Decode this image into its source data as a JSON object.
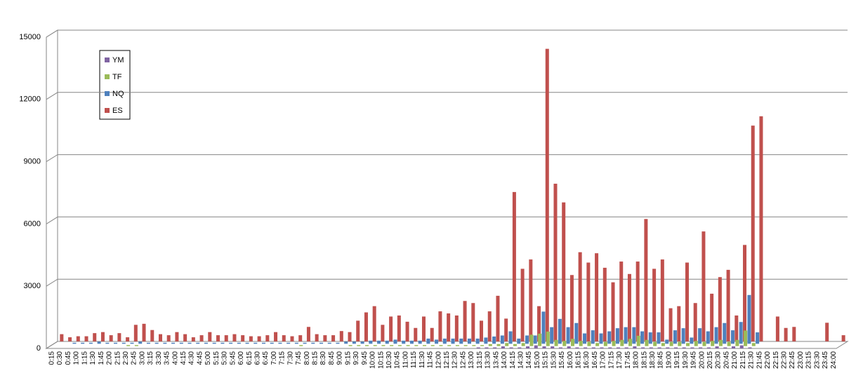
{
  "chart_data": {
    "type": "bar",
    "categories": [
      "0:15",
      "0:30",
      "0:45",
      "1:00",
      "1:15",
      "1:30",
      "1:45",
      "2:00",
      "2:15",
      "2:30",
      "2:45",
      "3:00",
      "3:15",
      "3:30",
      "3:45",
      "4:00",
      "4:15",
      "4:30",
      "4:45",
      "5:00",
      "5:15",
      "5:30",
      "5:45",
      "6:00",
      "6:15",
      "6:30",
      "6:45",
      "7:00",
      "7:15",
      "7:30",
      "7:45",
      "8:00",
      "8:15",
      "8:30",
      "8:45",
      "9:00",
      "9:15",
      "9:30",
      "9:45",
      "10:00",
      "10:15",
      "10:30",
      "10:45",
      "11:00",
      "11:15",
      "11:30",
      "11:45",
      "12:00",
      "12:15",
      "12:30",
      "12:45",
      "13:00",
      "13:15",
      "13:30",
      "13:45",
      "14:00",
      "14:15",
      "14:30",
      "14:45",
      "15:00",
      "15:15",
      "15:30",
      "15:45",
      "16:00",
      "16:15",
      "16:30",
      "16:45",
      "17:00",
      "17:15",
      "17:30",
      "17:45",
      "18:00",
      "18:15",
      "18:30",
      "18:45",
      "19:00",
      "19:15",
      "19:30",
      "19:45",
      "20:00",
      "20:15",
      "20:30",
      "20:45",
      "21:00",
      "21:15",
      "21:30",
      "21:45",
      "22:00",
      "22:15",
      "22:30",
      "22:45",
      "23:00",
      "23:15",
      "23:30",
      "23:45",
      "24:00"
    ],
    "series": [
      {
        "name": "ES",
        "color": "#c0504d",
        "values": [
          350,
          200,
          250,
          250,
          400,
          450,
          300,
          400,
          200,
          800,
          850,
          550,
          350,
          300,
          450,
          350,
          200,
          300,
          450,
          300,
          300,
          350,
          300,
          250,
          250,
          300,
          450,
          300,
          250,
          300,
          700,
          350,
          300,
          300,
          500,
          450,
          1000,
          1400,
          1700,
          800,
          1200,
          1250,
          950,
          650,
          1200,
          650,
          1450,
          1350,
          1250,
          1950,
          1850,
          1000,
          1450,
          2200,
          1100,
          7200,
          3500,
          3950,
          1700,
          14100,
          7600,
          6700,
          3200,
          4300,
          3800,
          4250,
          3550,
          2850,
          3850,
          3250,
          3850,
          5900,
          3500,
          3950,
          1600,
          1700,
          3800,
          1850,
          5300,
          2300,
          3100,
          3450,
          1250,
          4650,
          10400,
          10850,
          0,
          1200,
          650,
          700,
          0,
          0,
          0,
          900,
          0,
          300
        ]
      },
      {
        "name": "NQ",
        "color": "#4f81bd",
        "values": [
          0,
          0,
          50,
          50,
          50,
          100,
          50,
          50,
          50,
          50,
          100,
          50,
          50,
          50,
          50,
          50,
          50,
          50,
          50,
          50,
          50,
          50,
          50,
          50,
          50,
          50,
          50,
          50,
          50,
          50,
          50,
          50,
          50,
          50,
          50,
          100,
          100,
          100,
          150,
          150,
          150,
          200,
          150,
          150,
          150,
          250,
          200,
          250,
          250,
          250,
          250,
          250,
          300,
          350,
          400,
          600,
          250,
          400,
          400,
          1550,
          800,
          1200,
          800,
          1000,
          500,
          650,
          500,
          600,
          750,
          800,
          800,
          600,
          550,
          550,
          200,
          650,
          750,
          300,
          750,
          600,
          800,
          1000,
          650,
          1050,
          2350,
          550,
          0,
          0,
          0,
          0,
          0,
          0,
          0,
          0,
          0,
          0
        ]
      },
      {
        "name": "TF",
        "color": "#9bbb59",
        "values": [
          0,
          0,
          0,
          0,
          0,
          0,
          0,
          0,
          0,
          50,
          50,
          0,
          0,
          0,
          0,
          0,
          0,
          0,
          0,
          0,
          0,
          0,
          0,
          0,
          0,
          0,
          0,
          0,
          0,
          0,
          50,
          0,
          0,
          0,
          0,
          0,
          50,
          50,
          50,
          50,
          50,
          50,
          50,
          50,
          50,
          50,
          50,
          50,
          50,
          50,
          50,
          50,
          50,
          100,
          100,
          150,
          100,
          150,
          550,
          600,
          700,
          300,
          250,
          350,
          250,
          200,
          150,
          200,
          250,
          300,
          350,
          500,
          300,
          200,
          150,
          200,
          200,
          150,
          250,
          200,
          250,
          300,
          200,
          300,
          750,
          150,
          0,
          0,
          0,
          0,
          0,
          0,
          0,
          0,
          0,
          0
        ]
      },
      {
        "name": "YM",
        "color": "#8064a2",
        "values": [
          0,
          0,
          0,
          0,
          0,
          0,
          0,
          0,
          0,
          0,
          0,
          0,
          0,
          0,
          0,
          0,
          0,
          0,
          0,
          0,
          0,
          0,
          0,
          0,
          0,
          0,
          0,
          0,
          0,
          0,
          0,
          0,
          0,
          0,
          0,
          0,
          0,
          0,
          0,
          0,
          0,
          0,
          0,
          0,
          0,
          0,
          0,
          0,
          0,
          0,
          0,
          0,
          50,
          50,
          50,
          100,
          50,
          50,
          100,
          150,
          100,
          100,
          50,
          100,
          50,
          50,
          50,
          50,
          50,
          50,
          50,
          100,
          50,
          50,
          50,
          50,
          50,
          50,
          50,
          50,
          50,
          100,
          50,
          100,
          150,
          50,
          0,
          0,
          0,
          0,
          0,
          0,
          0,
          0,
          0,
          0
        ]
      }
    ],
    "ylim": [
      0,
      15000
    ],
    "yticks": [
      0,
      3000,
      6000,
      9000,
      12000,
      15000
    ],
    "grid": true
  }
}
